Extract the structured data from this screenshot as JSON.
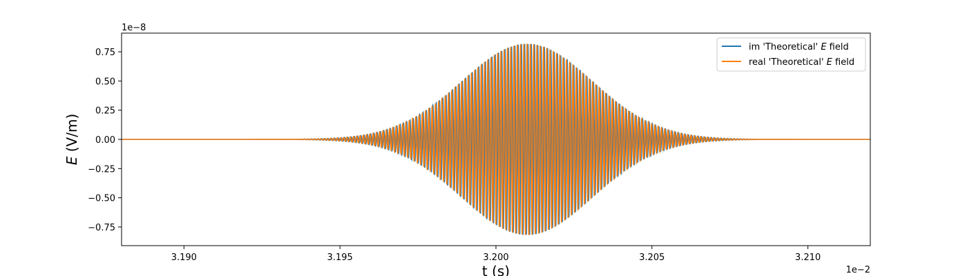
{
  "chart_data": {
    "type": "line",
    "title": "",
    "xlabel": "t (s)",
    "ylabel_italic": "E",
    "ylabel_rest": " (V/m)",
    "x_offset_label": "1e−2",
    "y_offset_label": "1e−8",
    "xlim": [
      3.188,
      3.212
    ],
    "ylim": [
      -0.91,
      0.91
    ],
    "xticks": [
      3.19,
      3.195,
      3.2,
      3.205,
      3.21
    ],
    "xtick_labels": [
      "3.190",
      "3.195",
      "3.200",
      "3.205",
      "3.210"
    ],
    "yticks": [
      -0.75,
      -0.5,
      -0.25,
      0.0,
      0.25,
      0.5,
      0.75
    ],
    "ytick_labels": [
      "−0.75",
      "−0.50",
      "−0.25",
      "0.00",
      "0.25",
      "0.50",
      "0.75"
    ],
    "grid": false,
    "legend_position": "top-right",
    "envelope": {
      "center": 3.201,
      "sigma": 0.0021,
      "amplitude": 0.82
    },
    "carrier_period": 0.000105,
    "x_range_nonzero": [
      3.192,
      3.21
    ],
    "series": [
      {
        "name": "im 'Theoretical' E field",
        "legend_prefix": "im 'Theoretical' ",
        "legend_italic": "E",
        "legend_suffix": " field",
        "color": "#1f77b4",
        "phase": "sin"
      },
      {
        "name": "real 'Theoretical' E field",
        "legend_prefix": "real 'Theoretical' ",
        "legend_italic": "E",
        "legend_suffix": " field",
        "color": "#ff7f0e",
        "phase": "cos"
      }
    ]
  }
}
